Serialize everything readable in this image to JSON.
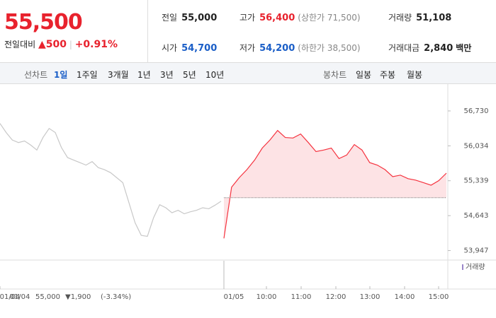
{
  "quote": {
    "price": "55,500",
    "change_label": "전일대비",
    "change": "▲500",
    "change_pct": "+0.91%"
  },
  "stats": [
    {
      "label": "전일",
      "value": "55,000"
    },
    {
      "label": "고가",
      "value": "56,400",
      "note": "(상한가 71,500)"
    },
    {
      "label": "거래량",
      "value": "51,108"
    },
    {
      "label": "시가",
      "value": "54,700"
    },
    {
      "label": "저가",
      "value": "54,200",
      "note": "(하한가 38,500)"
    },
    {
      "label": "거래대금",
      "value": "2,840",
      "note": "백만"
    }
  ],
  "tabs": {
    "line_label": "선차트",
    "line": [
      "1일",
      "1주일",
      "3개월",
      "1년",
      "3년",
      "5년",
      "10년"
    ],
    "candle_label": "봉차트",
    "candle": [
      "일봉",
      "주봉",
      "월봉"
    ]
  },
  "chart_data": {
    "type": "line",
    "ylim": [
      53800,
      57180
    ],
    "yticks": [
      {
        "value": 56730,
        "label": "56,730"
      },
      {
        "value": 56034,
        "label": "56,034"
      },
      {
        "value": 55339,
        "label": "55,339"
      },
      {
        "value": 54643,
        "label": "54,643"
      },
      {
        "value": 53947,
        "label": "53,947"
      }
    ],
    "baseline": 55000,
    "series": [
      {
        "color": "#c8c8c8",
        "values": [
          56480,
          56300,
          56150,
          56100,
          56130,
          56050,
          55950,
          56200,
          56380,
          56300,
          56000,
          55800,
          55750,
          55700,
          55650,
          55720,
          55600,
          55560,
          55500,
          55400,
          55300,
          54900,
          54500,
          54250,
          54230,
          54600,
          54860,
          54800,
          54700,
          54750,
          54680,
          54720,
          54750,
          54800,
          54780,
          54850,
          54930
        ]
      },
      {
        "color": "#f5333f",
        "fill": "#fde3e5",
        "values": [
          54190,
          55210,
          55400,
          55560,
          55750,
          55990,
          56150,
          56340,
          56200,
          56190,
          56270,
          56100,
          55920,
          55950,
          55990,
          55780,
          55850,
          56060,
          55950,
          55700,
          55650,
          55560,
          55420,
          55450,
          55380,
          55350,
          55300,
          55250,
          55340,
          55490
        ]
      }
    ],
    "xlabels": [
      "01/04",
      "01/05",
      "10:00",
      "11:00",
      "12:00",
      "13:00",
      "14:00",
      "15:00"
    ],
    "volume_label": "거래량"
  },
  "footer": {
    "date": "01/04",
    "price": "55,000",
    "change": "▼1,900",
    "pct": "(-3.34%)"
  }
}
